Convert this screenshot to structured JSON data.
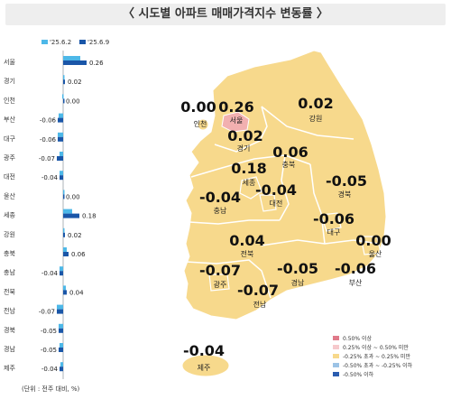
{
  "title": "〈 시도별 아파트 매매가격지수 변동률 〉",
  "legend": {
    "series1": "'25.6.2",
    "series2": "'25.6.9"
  },
  "unit_note": "(단위 : 전주 대비, %)",
  "colors": {
    "series1": "#4db8e8",
    "series2": "#1a56a8",
    "map_base": "#f7d98c",
    "map_highlight": "#f2b0b0",
    "map_border": "#ffffff"
  },
  "chart_data": {
    "type": "bar",
    "orientation": "horizontal",
    "categories": [
      "서울",
      "경기",
      "인천",
      "부산",
      "대구",
      "광주",
      "대전",
      "울산",
      "세종",
      "강원",
      "충북",
      "충남",
      "전북",
      "전남",
      "경북",
      "경남",
      "제주"
    ],
    "series": [
      {
        "name": "'25.6.2",
        "values": [
          0.19,
          0.01,
          -0.01,
          -0.05,
          -0.06,
          -0.04,
          -0.04,
          0.01,
          0.1,
          0.01,
          0.04,
          -0.04,
          0.03,
          -0.07,
          -0.05,
          -0.04,
          -0.03
        ]
      },
      {
        "name": "'25.6.9",
        "values": [
          0.26,
          0.02,
          0.0,
          -0.06,
          -0.06,
          -0.07,
          -0.04,
          0.0,
          0.18,
          0.02,
          0.06,
          -0.04,
          0.04,
          -0.07,
          -0.05,
          -0.05,
          -0.04
        ]
      }
    ],
    "value_labels": [
      "0.26",
      "0.02",
      "0.00",
      "-0.06",
      "-0.06",
      "-0.07",
      "-0.04",
      "0.00",
      "0.18",
      "0.02",
      "0.06",
      "-0.04",
      "0.04",
      "-0.07",
      "-0.05",
      "-0.05",
      "-0.04"
    ]
  },
  "map_data": {
    "regions": [
      {
        "name": "인천",
        "value": "0.00"
      },
      {
        "name": "서울",
        "value": "0.26"
      },
      {
        "name": "강원",
        "value": "0.02"
      },
      {
        "name": "경기",
        "value": "0.02"
      },
      {
        "name": "충북",
        "value": "0.06"
      },
      {
        "name": "세종",
        "value": "0.18"
      },
      {
        "name": "경북",
        "value": "-0.05"
      },
      {
        "name": "충남",
        "value": "-0.04"
      },
      {
        "name": "대전",
        "value": "-0.04"
      },
      {
        "name": "대구",
        "value": "-0.06"
      },
      {
        "name": "전북",
        "value": "0.04"
      },
      {
        "name": "울산",
        "value": "0.00"
      },
      {
        "name": "광주",
        "value": "-0.07"
      },
      {
        "name": "경남",
        "value": "-0.05"
      },
      {
        "name": "부산",
        "value": "-0.06"
      },
      {
        "name": "전남",
        "value": "-0.07"
      },
      {
        "name": "제주",
        "value": "-0.04"
      }
    ],
    "legend": [
      {
        "label": "0.50% 이상",
        "color": "#e07a8a"
      },
      {
        "label": "0.25% 이상 ~ 0.50% 미만",
        "color": "#f6c9cc"
      },
      {
        "label": "-0.25% 초과 ~ 0.25% 미만",
        "color": "#f7d98c"
      },
      {
        "label": "-0.50% 초과 ~ -0.25% 이하",
        "color": "#9cc3e6"
      },
      {
        "label": "-0.50% 이하",
        "color": "#2a5db0"
      }
    ]
  }
}
